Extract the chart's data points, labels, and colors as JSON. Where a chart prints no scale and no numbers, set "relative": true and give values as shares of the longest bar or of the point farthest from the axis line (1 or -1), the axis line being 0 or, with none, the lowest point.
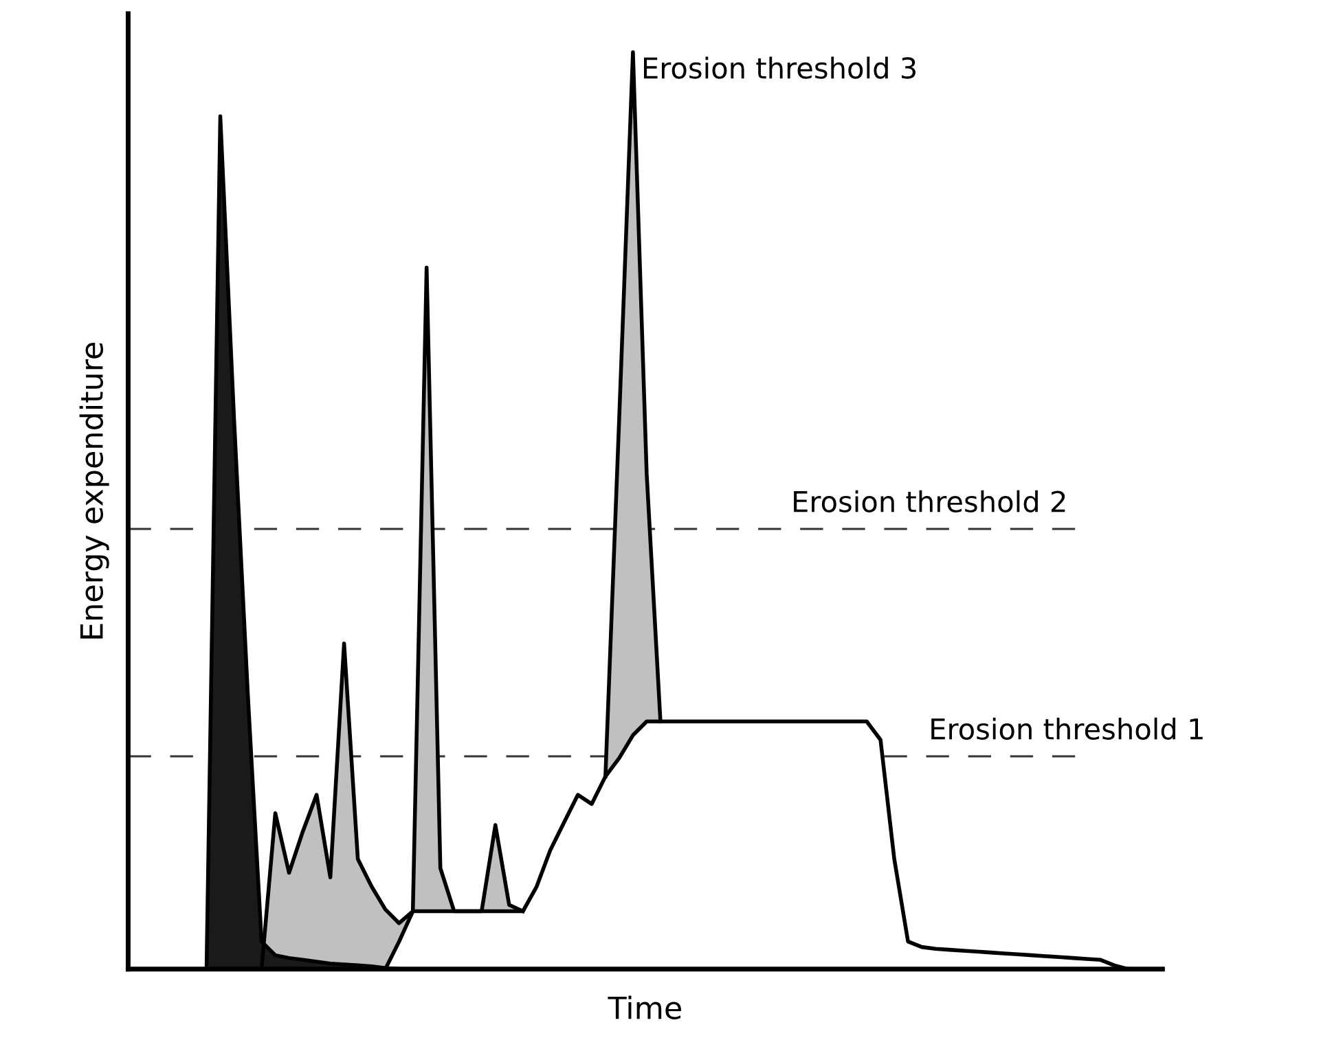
{
  "chart_data": {
    "type": "area",
    "relative": true,
    "xlabel": "Time",
    "ylabel": "Energy expenditure",
    "categories": [
      null,
      null,
      null,
      null,
      null,
      null,
      null,
      null,
      null,
      null,
      null,
      null,
      null,
      null,
      null,
      null,
      null,
      null,
      null,
      null,
      null,
      null,
      null,
      null,
      null,
      null,
      null,
      null,
      null,
      null,
      null,
      null,
      null,
      null,
      null,
      null,
      null,
      null,
      null,
      null,
      null,
      null,
      null,
      null,
      null,
      null,
      null,
      null,
      null,
      null,
      null,
      null,
      null,
      null,
      null,
      null,
      null,
      null,
      null,
      null,
      null,
      null,
      null,
      null,
      null,
      null,
      null,
      null,
      null,
      null,
      null,
      null,
      null,
      null,
      null
    ],
    "series": [
      {
        "color": "#c0c0c0",
        "values": [
          null,
          null,
          null,
          null,
          null,
          null,
          null,
          null,
          null,
          0,
          0.17,
          0.105,
          0.15,
          0.19,
          0.1,
          0.355,
          0.12,
          0.09,
          0.065,
          0.05,
          0.063,
          0.765,
          0.11,
          0.063,
          0.063,
          0.063,
          0.157,
          0.07,
          0.063,
          null,
          null,
          null,
          null,
          null,
          0.21,
          0.6,
          1.0,
          0.54,
          0.27,
          null,
          null,
          null,
          null,
          null,
          null,
          null,
          null,
          null,
          null,
          null,
          null,
          null,
          null,
          null,
          null,
          null,
          null,
          null,
          null,
          null,
          null,
          null,
          null,
          null,
          null,
          null,
          null,
          null,
          null,
          null,
          null,
          null,
          null,
          null,
          null
        ]
      },
      {
        "color": "#ffffff",
        "values": [
          null,
          null,
          null,
          null,
          null,
          null,
          null,
          null,
          null,
          null,
          null,
          null,
          null,
          null,
          null,
          null,
          null,
          null,
          0,
          0.03,
          0.063,
          0.063,
          0.063,
          0.063,
          0.063,
          0.063,
          0.063,
          0.063,
          0.063,
          0.09,
          0.13,
          0.16,
          0.19,
          0.18,
          0.21,
          0.23,
          0.255,
          0.27,
          0.27,
          0.27,
          0.27,
          0.27,
          0.27,
          0.27,
          0.27,
          0.27,
          0.27,
          0.27,
          0.27,
          0.27,
          0.27,
          0.27,
          0.27,
          0.27,
          0.25,
          0.12,
          0.03,
          0.024,
          0.022,
          0.021,
          0.02,
          0.019,
          0.018,
          0.017,
          0.016,
          0.015,
          0.014,
          0.013,
          0.012,
          0.011,
          0.01,
          0.004,
          0,
          null,
          null
        ]
      },
      {
        "color": "#1a1a1a",
        "values": [
          null,
          null,
          null,
          null,
          null,
          0,
          0.93,
          0.6,
          0.3,
          0.03,
          0.015,
          0.012,
          0.01,
          0.008,
          0.006,
          0.005,
          0.004,
          0.003,
          0.001,
          0,
          null,
          null,
          null,
          null,
          null,
          null,
          null,
          null,
          null,
          null,
          null,
          null,
          null,
          null,
          null,
          null,
          null,
          null,
          null,
          null,
          null,
          null,
          null,
          null,
          null,
          null,
          null,
          null,
          null,
          null,
          null,
          null,
          null,
          null,
          null,
          null,
          null,
          null,
          null,
          null,
          null,
          null,
          null,
          null,
          null,
          null,
          null,
          null,
          null,
          null,
          null,
          null,
          null,
          null,
          null
        ]
      }
    ],
    "ref_lines": [
      {
        "axis": "y",
        "value": 0.48,
        "label": "Erosion threshold 2",
        "color": "#333333",
        "line_style": "dashed"
      },
      {
        "axis": "y",
        "value": 0.232,
        "label": "Erosion threshold 1",
        "color": "#333333",
        "line_style": "dashed"
      }
    ],
    "annotations": [
      "Erosion threshold 3"
    ]
  }
}
